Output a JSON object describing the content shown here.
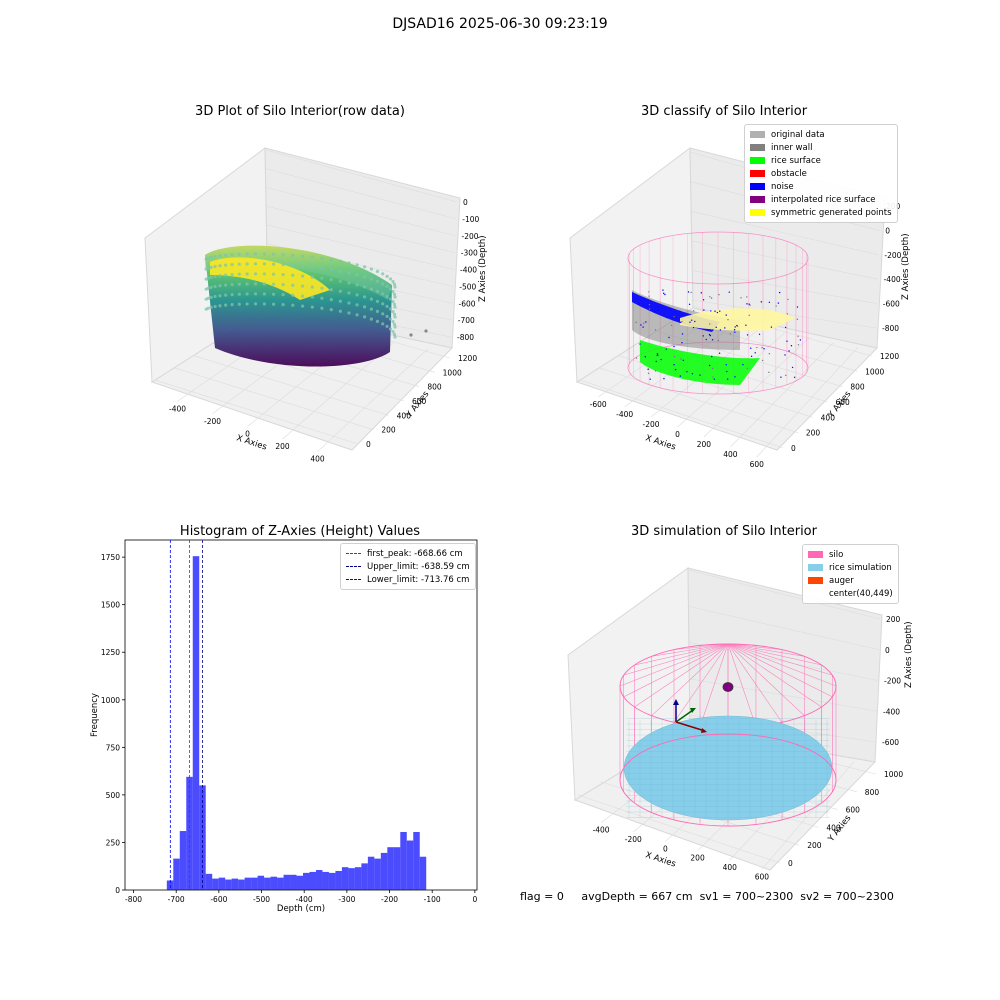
{
  "suptitle": "DJSAD16 2025-06-30 09:23:19",
  "status": {
    "flag": "flag = 0",
    "avg_depth": "avgDepth = 667 cm",
    "sv1": "sv1 = 700~2300",
    "sv2": "sv2 = 700~2300"
  },
  "chart_data": [
    {
      "type": "scatter",
      "title": "3D Plot of Silo Interior(row data)",
      "xlabel": "X Axies",
      "ylabel": "Y Axies",
      "zlabel": "Z Axies (Depth)",
      "x_ticks": [
        "-400",
        "-200",
        "0",
        "200",
        "400"
      ],
      "y_ticks": [
        "0",
        "200",
        "400",
        "600",
        "800",
        "1000",
        "1200"
      ],
      "z_ticks": [
        "0",
        "-100",
        "-200",
        "-300",
        "-400",
        "-500",
        "-600",
        "-700",
        "-800"
      ],
      "colormap": "viridis"
    },
    {
      "type": "scatter",
      "title": "3D classify of Silo Interior",
      "xlabel": "X Axies",
      "ylabel": "Y Axies",
      "zlabel": "Z Axies (Depth)",
      "x_ticks": [
        "-600",
        "-400",
        "-200",
        "0",
        "200",
        "400",
        "600"
      ],
      "y_ticks": [
        "0",
        "200",
        "400",
        "600",
        "800",
        "1000",
        "1200"
      ],
      "z_ticks": [
        "200",
        "0",
        "-200",
        "-400",
        "-600",
        "-800"
      ],
      "legend": [
        {
          "label": "original data",
          "color": "#b0b0b0"
        },
        {
          "label": "inner wall",
          "color": "#808080"
        },
        {
          "label": "rice surface",
          "color": "#00ff00"
        },
        {
          "label": "obstacle",
          "color": "#ff0000"
        },
        {
          "label": "noise",
          "color": "#0000ff"
        },
        {
          "label": "interpolated rice surface",
          "color": "#800080"
        },
        {
          "label": "symmetric generated points",
          "color": "#ffff00"
        }
      ]
    },
    {
      "type": "bar",
      "title": "Histogram of Z-Axies (Height) Values",
      "xlabel": "Depth (cm)",
      "ylabel": "Frequency",
      "xlim": [
        -820,
        5
      ],
      "ylim": [
        0,
        1840
      ],
      "x_ticks": [
        -800,
        -700,
        -600,
        -500,
        -400,
        -300,
        -200,
        -100,
        0
      ],
      "y_ticks": [
        0,
        250,
        500,
        750,
        1000,
        1250,
        1500,
        1750
      ],
      "bin_width": 15.2,
      "bin_start": -722,
      "values": [
        50,
        165,
        310,
        595,
        1755,
        550,
        85,
        60,
        65,
        55,
        60,
        55,
        65,
        65,
        75,
        65,
        70,
        65,
        80,
        80,
        75,
        90,
        95,
        105,
        95,
        90,
        100,
        120,
        115,
        120,
        140,
        175,
        165,
        195,
        225,
        225,
        305,
        260,
        305,
        175
      ],
      "bar_color": "#0000ff",
      "lines": [
        {
          "label": "first_peak: -668.66 cm",
          "x": -668.66,
          "color": "#ff0000"
        },
        {
          "label": "Upper_limit: -638.59 cm",
          "x": -638.59,
          "color": "#00008b"
        },
        {
          "label": "Lower_limit: -713.76 cm",
          "x": -713.76,
          "color": "#0000ff"
        }
      ]
    },
    {
      "type": "scatter",
      "title": "3D simulation of Silo Interior",
      "xlabel": "X Axies",
      "ylabel": "Y Axies",
      "zlabel": "Z Axies (Depth)",
      "x_ticks": [
        "-400",
        "-200",
        "0",
        "200",
        "400",
        "600"
      ],
      "y_ticks": [
        "0",
        "200",
        "400",
        "600",
        "800",
        "1000"
      ],
      "z_ticks": [
        "200",
        "0",
        "-200",
        "-400",
        "-600"
      ],
      "legend": [
        {
          "label": "silo",
          "color": "#ff69b4"
        },
        {
          "label": "rice simulation",
          "color": "#87ceeb"
        },
        {
          "label": "auger",
          "color": "#ff4500"
        },
        {
          "label": "center(40,449)",
          "color": ""
        }
      ]
    }
  ]
}
